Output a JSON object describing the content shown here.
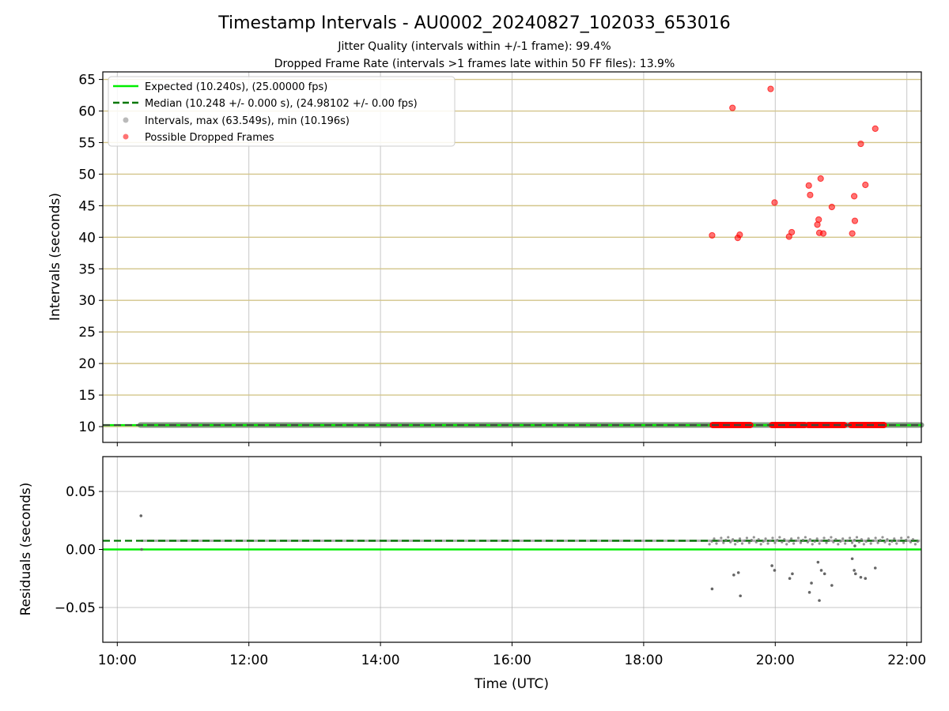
{
  "figure": {
    "title": "Timestamp Intervals - AU0002_20240827_102033_653016",
    "subtitle_1": "Jitter Quality (intervals within +/-1 frame): 99.4%",
    "subtitle_2": "Dropped Frame Rate (intervals >1 frames late within 50 FF files): 13.9%"
  },
  "chart_data": [
    {
      "type": "scatter",
      "panel": "intervals",
      "xlabel": "",
      "ylabel": "Intervals (seconds)",
      "xlim": [
        9.78,
        22.22
      ],
      "ylim": [
        7.5,
        66.2
      ],
      "yticks": [
        10,
        15,
        20,
        25,
        30,
        35,
        40,
        45,
        50,
        55,
        60,
        65
      ],
      "ytick_labels": [
        "10",
        "15",
        "20",
        "25",
        "30",
        "35",
        "40",
        "45",
        "50",
        "55",
        "60",
        "65"
      ],
      "xticks": [
        10,
        12,
        14,
        16,
        18,
        20,
        22
      ],
      "grid": true,
      "legend_position": "top-left",
      "legend": [
        "Expected (10.240s), (25.00000 fps)",
        "Median (10.248 +/- 0.000 s), (24.98102 +/- 0.00 fps)",
        "Intervals, max (63.549s), min (10.196s)",
        "Possible Dropped Frames"
      ],
      "expected_interval": 10.24,
      "median_interval": 10.248,
      "intervals_range": [
        10.35,
        22.22
      ],
      "intervals_value": 10.248,
      "dropped_frames_near_baseline": [
        [
          19.05,
          19.42
        ],
        [
          19.35,
          19.62
        ],
        [
          19.95,
          20.45
        ],
        [
          20.5,
          21.05
        ],
        [
          21.15,
          21.65
        ]
      ],
      "dropped_frames": [
        {
          "x": 19.04,
          "y": 40.3
        },
        {
          "x": 19.35,
          "y": 60.5
        },
        {
          "x": 19.43,
          "y": 39.9
        },
        {
          "x": 19.46,
          "y": 40.4
        },
        {
          "x": 19.93,
          "y": 63.5
        },
        {
          "x": 19.99,
          "y": 45.5
        },
        {
          "x": 20.21,
          "y": 40.1
        },
        {
          "x": 20.25,
          "y": 40.8
        },
        {
          "x": 20.51,
          "y": 48.2
        },
        {
          "x": 20.53,
          "y": 46.7
        },
        {
          "x": 20.64,
          "y": 42.0
        },
        {
          "x": 20.66,
          "y": 42.8
        },
        {
          "x": 20.67,
          "y": 40.7
        },
        {
          "x": 20.69,
          "y": 49.3
        },
        {
          "x": 20.73,
          "y": 40.6
        },
        {
          "x": 20.86,
          "y": 44.8
        },
        {
          "x": 21.17,
          "y": 40.6
        },
        {
          "x": 21.2,
          "y": 46.5
        },
        {
          "x": 21.21,
          "y": 42.6
        },
        {
          "x": 21.3,
          "y": 54.8
        },
        {
          "x": 21.37,
          "y": 48.3
        },
        {
          "x": 21.52,
          "y": 57.2
        }
      ]
    },
    {
      "type": "scatter",
      "panel": "residuals",
      "xlabel": "Time (UTC)",
      "ylabel": "Residuals (seconds)",
      "xlim": [
        9.78,
        22.22
      ],
      "ylim": [
        -0.08,
        0.08
      ],
      "yticks": [
        -0.05,
        0.0,
        0.05
      ],
      "ytick_labels": [
        "−0.05",
        "0.00",
        "0.05"
      ],
      "xticks": [
        10,
        12,
        14,
        16,
        18,
        20,
        22
      ],
      "xtick_labels": [
        "10:00",
        "12:00",
        "14:00",
        "16:00",
        "18:00",
        "20:00",
        "22:00"
      ],
      "grid": true,
      "expected_line": 0.0,
      "median_line": 0.0075,
      "residuals": [
        {
          "x": 10.36,
          "y": 0.029
        },
        {
          "x": 10.37,
          "y": 0.0
        },
        {
          "x": 19.04,
          "y": -0.034
        },
        {
          "x": 19.37,
          "y": -0.022
        },
        {
          "x": 19.44,
          "y": -0.02
        },
        {
          "x": 19.47,
          "y": -0.04
        },
        {
          "x": 19.95,
          "y": -0.014
        },
        {
          "x": 19.99,
          "y": -0.018
        },
        {
          "x": 20.22,
          "y": -0.025
        },
        {
          "x": 20.26,
          "y": -0.021
        },
        {
          "x": 20.52,
          "y": -0.037
        },
        {
          "x": 20.55,
          "y": -0.029
        },
        {
          "x": 20.65,
          "y": -0.011
        },
        {
          "x": 20.67,
          "y": -0.044
        },
        {
          "x": 20.7,
          "y": -0.018
        },
        {
          "x": 20.75,
          "y": -0.021
        },
        {
          "x": 20.86,
          "y": -0.031
        },
        {
          "x": 21.17,
          "y": -0.008
        },
        {
          "x": 21.2,
          "y": -0.018
        },
        {
          "x": 21.21,
          "y": 0.003
        },
        {
          "x": 21.22,
          "y": -0.021
        },
        {
          "x": 21.3,
          "y": -0.024
        },
        {
          "x": 21.37,
          "y": -0.025
        },
        {
          "x": 21.52,
          "y": -0.016
        }
      ],
      "residual_band": {
        "x_start": 10.36,
        "x_end": 22.2,
        "y": 0.0075
      }
    }
  ],
  "colors": {
    "expected": "#00ee00",
    "median": "#007700",
    "intervals": "#8c8c8c",
    "dropped": "#ff0000",
    "grid_y_top": "#d3c58a",
    "grid": "#b0b0b0"
  }
}
